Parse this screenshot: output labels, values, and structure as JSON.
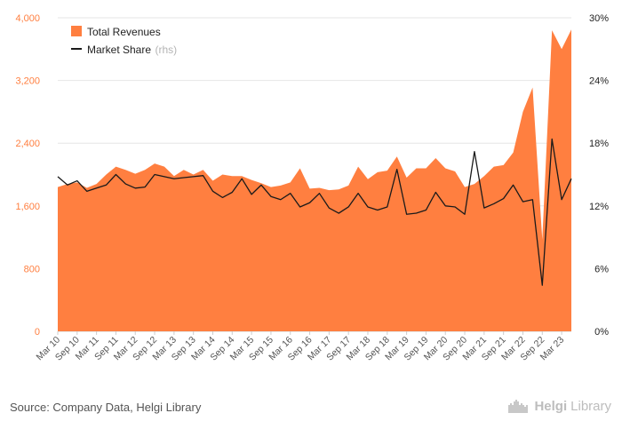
{
  "chart_data": {
    "type": "area",
    "left_axis": {
      "ticks": [
        "0",
        "800",
        "1,600",
        "2,400",
        "3,200",
        "4,000"
      ],
      "ylim": [
        0,
        4000
      ]
    },
    "right_axis": {
      "ticks": [
        "0%",
        "6%",
        "12%",
        "18%",
        "24%",
        "30%"
      ],
      "ylim": [
        0,
        30
      ]
    },
    "x_tick_labels": [
      "Mar 10",
      "Sep 10",
      "Mar 11",
      "Sep 11",
      "Mar 12",
      "Sep 12",
      "Mar 13",
      "Sep 13",
      "Mar 14",
      "Sep 14",
      "Mar 15",
      "Sep 15",
      "Mar 16",
      "Sep 16",
      "Mar 17",
      "Sep 17",
      "Mar 18",
      "Sep 18",
      "Mar 19",
      "Sep 19",
      "Mar 20",
      "Sep 20",
      "Mar 21",
      "Sep 21",
      "Mar 22",
      "Sep 22",
      "Mar 23"
    ],
    "x": [
      "Mar 10",
      "Jun 10",
      "Sep 10",
      "Dec 10",
      "Mar 11",
      "Jun 11",
      "Sep 11",
      "Dec 11",
      "Mar 12",
      "Jun 12",
      "Sep 12",
      "Dec 12",
      "Mar 13",
      "Jun 13",
      "Sep 13",
      "Dec 13",
      "Mar 14",
      "Jun 14",
      "Sep 14",
      "Dec 14",
      "Mar 15",
      "Jun 15",
      "Sep 15",
      "Dec 15",
      "Mar 16",
      "Jun 16",
      "Sep 16",
      "Dec 16",
      "Mar 17",
      "Jun 17",
      "Sep 17",
      "Dec 17",
      "Mar 18",
      "Jun 18",
      "Sep 18",
      "Dec 18",
      "Mar 19",
      "Jun 19",
      "Sep 19",
      "Dec 19",
      "Mar 20",
      "Jun 20",
      "Sep 20",
      "Dec 20",
      "Mar 21",
      "Jun 21",
      "Sep 21",
      "Dec 21",
      "Mar 22",
      "Jun 22",
      "Sep 22",
      "Dec 22",
      "Mar 23",
      "Jun 23"
    ],
    "series": [
      {
        "name": "Total Revenues",
        "axis": "left",
        "color": "#ff7f40",
        "values": [
          1840,
          1880,
          1900,
          1830,
          1880,
          2000,
          2100,
          2060,
          2010,
          2060,
          2140,
          2100,
          1980,
          2060,
          2000,
          2060,
          1920,
          2000,
          1980,
          1980,
          1930,
          1890,
          1840,
          1860,
          1900,
          2080,
          1820,
          1830,
          1800,
          1810,
          1860,
          2100,
          1940,
          2030,
          2050,
          2230,
          1960,
          2080,
          2080,
          2210,
          2080,
          2040,
          1840,
          1880,
          1980,
          2100,
          2120,
          2280,
          2800,
          3110,
          1170,
          3840,
          3600,
          3850
        ]
      },
      {
        "name": "Market Share",
        "note": "(rhs)",
        "axis": "right",
        "color": "#1a1a1a",
        "values": [
          14.8,
          14.0,
          14.4,
          13.4,
          13.7,
          14.0,
          15.0,
          14.1,
          13.7,
          13.8,
          15.0,
          14.8,
          14.6,
          14.7,
          14.8,
          14.9,
          13.4,
          12.8,
          13.3,
          14.6,
          13.1,
          14.0,
          12.9,
          12.6,
          13.2,
          11.9,
          12.3,
          13.2,
          11.8,
          11.3,
          11.9,
          13.2,
          11.9,
          11.6,
          11.9,
          15.5,
          11.2,
          11.3,
          11.6,
          13.3,
          12.0,
          11.9,
          11.2,
          17.2,
          11.8,
          12.2,
          12.7,
          14.0,
          12.4,
          12.6,
          4.4,
          18.4,
          12.6,
          14.6
        ]
      }
    ],
    "legend_position": "top-left",
    "grid": "horizontal"
  },
  "footer": {
    "source": "Source: Company Data, Helgi Library",
    "logo_a": "Helgi",
    "logo_b": "Library"
  }
}
